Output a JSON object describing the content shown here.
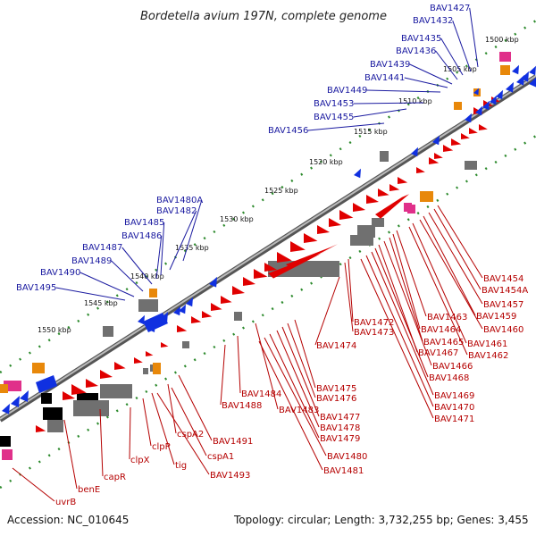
{
  "title": "Bordetella avium 197N, complete genome",
  "footer": {
    "accession": "Accession: NC_010645",
    "topology": "Topology: circular; Length: 3,732,255 bp; Genes: 3,455"
  },
  "colors": {
    "forward_gene": "#e00000",
    "reverse_gene": "#1030e0",
    "rna": "#e8880a",
    "pseudo": "#707070",
    "other": "#e0308a",
    "backbone": "#777777",
    "tick": "#2e8b2e",
    "label_blue": "#1a1aa0",
    "label_red": "#b50000"
  },
  "scale_labels": [
    "1500 kbp",
    "1505 kbp",
    "1510 kbp",
    "1515 kbp",
    "1520 kbp",
    "1525 kbp",
    "1530 kbp",
    "1535 kbp",
    "1540 kbp",
    "1545 kbp",
    "1550 kbp"
  ],
  "outer_labels": [
    "BAV1427",
    "BAV1432",
    "BAV1435",
    "BAV1436",
    "BAV1439",
    "BAV1441",
    "BAV1449",
    "BAV1453",
    "BAV1455",
    "BAV1456",
    "BAV1480A",
    "BAV1482",
    "BAV1485",
    "BAV1486",
    "BAV1487",
    "BAV1489",
    "BAV1490",
    "BAV1495"
  ],
  "inner_labels": [
    "BAV1454",
    "BAV1454A",
    "BAV1457",
    "BAV1459",
    "BAV1460",
    "BAV1461",
    "BAV1462",
    "BAV1463",
    "BAV1464",
    "BAV1465",
    "BAV1466",
    "BAV1467",
    "BAV1468",
    "BAV1469",
    "BAV1470",
    "BAV1471",
    "BAV1472",
    "BAV1473",
    "BAV1474",
    "BAV1475",
    "BAV1476",
    "BAV1477",
    "BAV1478",
    "BAV1479",
    "BAV1480",
    "BAV1481",
    "BAV1483",
    "BAV1484",
    "BAV1488",
    "cspA2",
    "BAV1491",
    "cspA1",
    "BAV1493",
    "tig",
    "clpP",
    "clpX",
    "capR",
    "benE",
    "uvrB"
  ]
}
